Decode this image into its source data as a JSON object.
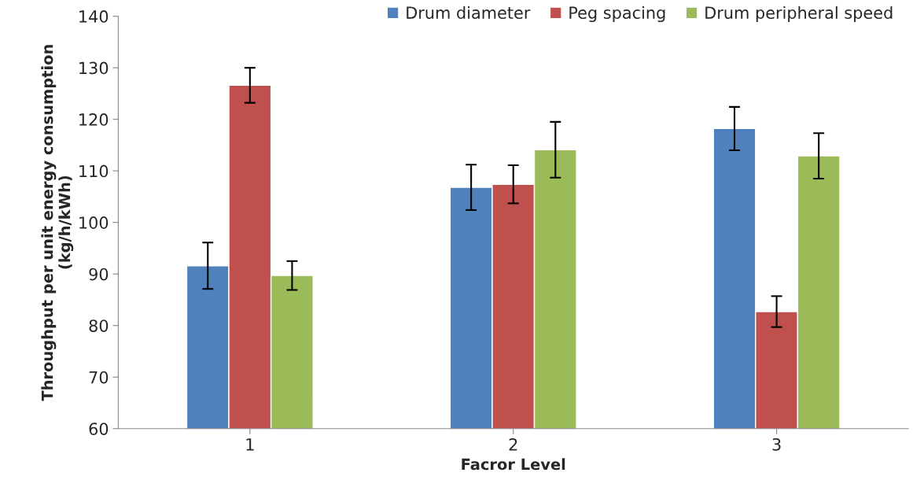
{
  "chart_data": {
    "type": "bar",
    "xlabel": "Facror Level",
    "ylabel": "Throughput per unit energy consumption\n(kg/h/kWh)",
    "categories": [
      "1",
      "2",
      "3"
    ],
    "series": [
      {
        "name": "Drum diameter",
        "color": "#4f81bd",
        "values": [
          91.6,
          106.8,
          118.2
        ],
        "errors": [
          4.5,
          4.4,
          4.2
        ]
      },
      {
        "name": "Peg spacing",
        "color": "#c0504d",
        "values": [
          126.6,
          107.4,
          82.7
        ],
        "errors": [
          3.4,
          3.7,
          3.0
        ]
      },
      {
        "name": "Drum peripheral speed",
        "color": "#9bbb59",
        "values": [
          89.7,
          114.1,
          112.9
        ],
        "errors": [
          2.8,
          5.4,
          4.4
        ]
      }
    ],
    "ylim": [
      60,
      140
    ],
    "yticks": [
      60,
      70,
      80,
      90,
      100,
      110,
      120,
      130,
      140
    ],
    "grid": false,
    "legend": "top right"
  }
}
